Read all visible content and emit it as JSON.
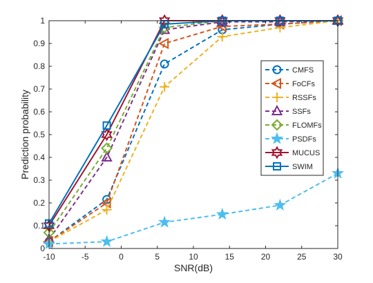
{
  "chart_data": {
    "type": "line",
    "title": "",
    "xlabel": "SNR(dB)",
    "ylabel": "Prediction probability",
    "xlim": [
      -10,
      30
    ],
    "ylim": [
      0,
      1
    ],
    "x": [
      -10,
      -2,
      6,
      14,
      22,
      30
    ],
    "x_ticks": [
      "-10",
      "-5",
      "0",
      "5",
      "10",
      "15",
      "20",
      "25",
      "30"
    ],
    "y_ticks": [
      "0",
      "0.1",
      "0.2",
      "0.3",
      "0.4",
      "0.5",
      "0.6",
      "0.7",
      "0.8",
      "0.9",
      "1"
    ],
    "grid": false,
    "legend_position": "right",
    "series": [
      {
        "name": "CMFS",
        "values": [
          0.03,
          0.215,
          0.81,
          0.96,
          0.985,
          1.0
        ],
        "color": "#0072BD",
        "dash": true,
        "marker": "circle"
      },
      {
        "name": "FoCFs",
        "values": [
          0.03,
          0.2,
          0.9,
          0.975,
          0.985,
          1.0
        ],
        "color": "#D95319",
        "dash": true,
        "marker": "triangle-left"
      },
      {
        "name": "RSSFs",
        "values": [
          0.03,
          0.17,
          0.71,
          0.93,
          0.97,
          1.0
        ],
        "color": "#EDB120",
        "dash": true,
        "marker": "plus"
      },
      {
        "name": "SSFs",
        "values": [
          0.04,
          0.4,
          0.96,
          0.995,
          0.995,
          1.0
        ],
        "color": "#7E2F8E",
        "dash": true,
        "marker": "triangle-up"
      },
      {
        "name": "FLOMFs",
        "values": [
          0.07,
          0.44,
          0.97,
          1.0,
          1.0,
          1.0
        ],
        "color": "#77AC30",
        "dash": true,
        "marker": "diamond"
      },
      {
        "name": "PSDFs",
        "values": [
          0.02,
          0.03,
          0.115,
          0.15,
          0.19,
          0.33
        ],
        "color": "#4DBEEE",
        "dash": true,
        "marker": "pentagram"
      },
      {
        "name": "MUCUS",
        "values": [
          0.1,
          0.5,
          1.0,
          1.0,
          1.0,
          1.0
        ],
        "color": "#A2142F",
        "dash": false,
        "marker": "hexagram"
      },
      {
        "name": "SWIM",
        "values": [
          0.11,
          0.54,
          0.985,
          1.0,
          1.0,
          1.0
        ],
        "color": "#0072BD",
        "dash": false,
        "marker": "square"
      }
    ]
  }
}
